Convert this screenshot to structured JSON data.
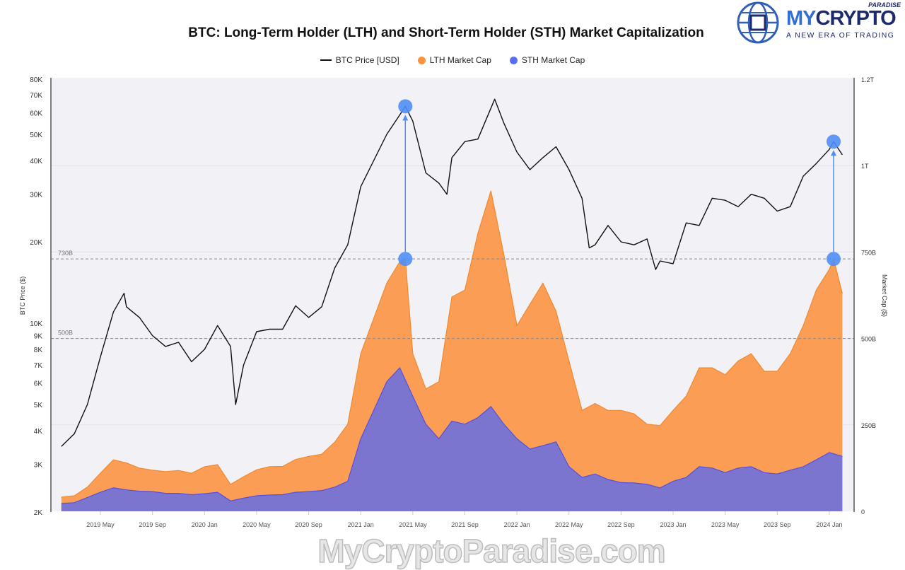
{
  "logo": {
    "brand_a": "MY",
    "brand_b": "CRYPTO",
    "sub": "PARADISE",
    "tagline": "A NEW ERA OF TRADING"
  },
  "watermark": "MyCryptoParadise.com",
  "colors": {
    "price": "#111111",
    "lth": "#fb9d55",
    "sth": "#7b75cf",
    "sth_line": "#5550e0",
    "marker": "#4f8ef7",
    "plot_bg": "#f1f1f6"
  },
  "chart_data": {
    "type": "area",
    "title": "BTC: Long-Term Holder (LTH) and Short-Term Holder (STH) Market Capitalization",
    "legend": [
      "BTC Price [USD]",
      "LTH Market Cap",
      "STH Market Cap"
    ],
    "legend_position": "top-center",
    "ylabel_left": "BTC Price ($)",
    "ylabel_right": "Market Cap ($)",
    "left_axis": {
      "scale": "log",
      "range": [
        2000,
        80000
      ],
      "ticks": [
        "2K",
        "3K",
        "4K",
        "5K",
        "6K",
        "7K",
        "8K",
        "9K",
        "10K",
        "20K",
        "30K",
        "40K",
        "50K",
        "60K",
        "70K",
        "80K"
      ],
      "tick_values": [
        2000,
        3000,
        4000,
        5000,
        6000,
        7000,
        8000,
        9000,
        10000,
        20000,
        30000,
        40000,
        50000,
        60000,
        70000,
        80000
      ]
    },
    "right_axis": {
      "scale": "linear",
      "range_billions": [
        0,
        1250
      ],
      "ticks": [
        "0",
        "250B",
        "500B",
        "750B",
        "1T",
        "1.2T"
      ],
      "tick_values": [
        0,
        250,
        500,
        750,
        1000,
        1250
      ]
    },
    "x_ticks": [
      "2019 May",
      "2019 Sep",
      "2020 Jan",
      "2020 May",
      "2020 Sep",
      "2021 Jan",
      "2021 May",
      "2021 Sep",
      "2022 Jan",
      "2022 May",
      "2022 Sep",
      "2023 Jan",
      "2023 May",
      "2023 Sep",
      "2024 Jan"
    ],
    "x_tick_dates": [
      "2019-05-01",
      "2019-09-01",
      "2020-01-01",
      "2020-05-01",
      "2020-09-01",
      "2021-01-01",
      "2021-05-01",
      "2021-09-01",
      "2022-01-01",
      "2022-05-01",
      "2022-09-01",
      "2023-01-01",
      "2023-05-01",
      "2023-09-01",
      "2024-01-01"
    ],
    "reference_lines": [
      {
        "label": "730B",
        "value": 730
      },
      {
        "label": "500B",
        "value": 500
      }
    ],
    "annotations": [
      {
        "date": "2021-04-14",
        "price": 63500,
        "cap": 730
      },
      {
        "date": "2024-01-11",
        "price": 47000,
        "cap": 730
      }
    ],
    "series": [
      {
        "name": "BTC Price [USD]",
        "unit": "USD",
        "points": [
          [
            "2019-02-01",
            3500
          ],
          [
            "2019-03-01",
            3900
          ],
          [
            "2019-04-01",
            5000
          ],
          [
            "2019-05-01",
            7500
          ],
          [
            "2019-06-01",
            11000
          ],
          [
            "2019-06-26",
            12900
          ],
          [
            "2019-07-01",
            11500
          ],
          [
            "2019-08-01",
            10500
          ],
          [
            "2019-09-01",
            9000
          ],
          [
            "2019-10-01",
            8200
          ],
          [
            "2019-11-01",
            8500
          ],
          [
            "2019-12-01",
            7200
          ],
          [
            "2020-01-01",
            8000
          ],
          [
            "2020-02-01",
            9800
          ],
          [
            "2020-03-01",
            8200
          ],
          [
            "2020-03-13",
            5000
          ],
          [
            "2020-04-01",
            7000
          ],
          [
            "2020-05-01",
            9300
          ],
          [
            "2020-06-01",
            9500
          ],
          [
            "2020-07-01",
            9500
          ],
          [
            "2020-08-01",
            11600
          ],
          [
            "2020-09-01",
            10500
          ],
          [
            "2020-10-01",
            11500
          ],
          [
            "2020-11-01",
            16000
          ],
          [
            "2020-12-01",
            19500
          ],
          [
            "2021-01-01",
            32000
          ],
          [
            "2021-02-01",
            40000
          ],
          [
            "2021-03-01",
            50000
          ],
          [
            "2021-04-01",
            59000
          ],
          [
            "2021-04-14",
            63500
          ],
          [
            "2021-05-01",
            56000
          ],
          [
            "2021-06-01",
            36000
          ],
          [
            "2021-07-01",
            33000
          ],
          [
            "2021-07-20",
            30000
          ],
          [
            "2021-08-01",
            41000
          ],
          [
            "2021-09-01",
            47000
          ],
          [
            "2021-10-01",
            48000
          ],
          [
            "2021-11-10",
            67500
          ],
          [
            "2021-12-01",
            55000
          ],
          [
            "2022-01-01",
            43000
          ],
          [
            "2022-02-01",
            37000
          ],
          [
            "2022-03-01",
            41000
          ],
          [
            "2022-04-01",
            45000
          ],
          [
            "2022-05-01",
            37000
          ],
          [
            "2022-06-01",
            29000
          ],
          [
            "2022-06-18",
            19000
          ],
          [
            "2022-07-01",
            19500
          ],
          [
            "2022-08-01",
            23000
          ],
          [
            "2022-09-01",
            20000
          ],
          [
            "2022-10-01",
            19500
          ],
          [
            "2022-11-01",
            20500
          ],
          [
            "2022-11-21",
            15800
          ],
          [
            "2022-12-01",
            17000
          ],
          [
            "2023-01-01",
            16600
          ],
          [
            "2023-02-01",
            23500
          ],
          [
            "2023-03-01",
            23000
          ],
          [
            "2023-04-01",
            29000
          ],
          [
            "2023-05-01",
            28500
          ],
          [
            "2023-06-01",
            27000
          ],
          [
            "2023-07-01",
            30000
          ],
          [
            "2023-08-01",
            29000
          ],
          [
            "2023-09-01",
            26000
          ],
          [
            "2023-10-01",
            27000
          ],
          [
            "2023-11-01",
            35000
          ],
          [
            "2023-12-01",
            39000
          ],
          [
            "2024-01-01",
            44000
          ],
          [
            "2024-01-11",
            47000
          ],
          [
            "2024-02-01",
            42000
          ]
        ]
      },
      {
        "name": "LTH Market Cap",
        "unit": "billion USD",
        "points": [
          [
            "2019-02-01",
            41
          ],
          [
            "2019-03-01",
            45
          ],
          [
            "2019-04-01",
            70
          ],
          [
            "2019-05-01",
            110
          ],
          [
            "2019-06-01",
            149
          ],
          [
            "2019-07-01",
            140
          ],
          [
            "2019-08-01",
            125
          ],
          [
            "2019-09-01",
            119
          ],
          [
            "2019-10-01",
            115
          ],
          [
            "2019-11-01",
            118
          ],
          [
            "2019-12-01",
            110
          ],
          [
            "2020-01-01",
            129
          ],
          [
            "2020-02-01",
            135
          ],
          [
            "2020-03-01",
            78
          ],
          [
            "2020-04-01",
            100
          ],
          [
            "2020-05-01",
            120
          ],
          [
            "2020-06-01",
            129
          ],
          [
            "2020-07-01",
            130
          ],
          [
            "2020-08-01",
            150
          ],
          [
            "2020-09-01",
            159
          ],
          [
            "2020-10-01",
            165
          ],
          [
            "2020-11-01",
            200
          ],
          [
            "2020-12-01",
            252
          ],
          [
            "2021-01-01",
            456
          ],
          [
            "2021-02-01",
            558
          ],
          [
            "2021-03-01",
            660
          ],
          [
            "2021-04-01",
            722
          ],
          [
            "2021-04-14",
            730
          ],
          [
            "2021-05-01",
            456
          ],
          [
            "2021-06-01",
            354
          ],
          [
            "2021-07-01",
            375
          ],
          [
            "2021-08-01",
            620
          ],
          [
            "2021-09-01",
            640
          ],
          [
            "2021-10-01",
            804
          ],
          [
            "2021-11-01",
            927
          ],
          [
            "2021-12-01",
            742
          ],
          [
            "2022-01-01",
            537
          ],
          [
            "2022-02-01",
            599
          ],
          [
            "2022-03-01",
            660
          ],
          [
            "2022-04-01",
            579
          ],
          [
            "2022-05-01",
            435
          ],
          [
            "2022-06-01",
            292
          ],
          [
            "2022-07-01",
            312
          ],
          [
            "2022-08-01",
            292
          ],
          [
            "2022-09-01",
            292
          ],
          [
            "2022-10-01",
            282
          ],
          [
            "2022-11-01",
            252
          ],
          [
            "2022-12-01",
            248
          ],
          [
            "2023-01-01",
            292
          ],
          [
            "2023-02-01",
            333
          ],
          [
            "2023-03-01",
            415
          ],
          [
            "2023-04-01",
            415
          ],
          [
            "2023-05-01",
            395
          ],
          [
            "2023-06-01",
            435
          ],
          [
            "2023-07-01",
            456
          ],
          [
            "2023-08-01",
            405
          ],
          [
            "2023-09-01",
            405
          ],
          [
            "2023-10-01",
            456
          ],
          [
            "2023-11-01",
            537
          ],
          [
            "2023-12-01",
            640
          ],
          [
            "2024-01-01",
            700
          ],
          [
            "2024-01-11",
            730
          ],
          [
            "2024-02-01",
            630
          ]
        ]
      },
      {
        "name": "STH Market Cap",
        "unit": "billion USD",
        "points": [
          [
            "2019-02-01",
            23
          ],
          [
            "2019-03-01",
            25
          ],
          [
            "2019-04-01",
            40
          ],
          [
            "2019-05-01",
            55
          ],
          [
            "2019-06-01",
            68
          ],
          [
            "2019-07-01",
            62
          ],
          [
            "2019-08-01",
            58
          ],
          [
            "2019-09-01",
            57
          ],
          [
            "2019-10-01",
            52
          ],
          [
            "2019-11-01",
            52
          ],
          [
            "2019-12-01",
            48
          ],
          [
            "2020-01-01",
            51
          ],
          [
            "2020-02-01",
            55
          ],
          [
            "2020-03-01",
            30
          ],
          [
            "2020-04-01",
            38
          ],
          [
            "2020-05-01",
            45
          ],
          [
            "2020-06-01",
            47
          ],
          [
            "2020-07-01",
            48
          ],
          [
            "2020-08-01",
            55
          ],
          [
            "2020-09-01",
            57
          ],
          [
            "2020-10-01",
            60
          ],
          [
            "2020-11-01",
            70
          ],
          [
            "2020-12-01",
            87
          ],
          [
            "2021-01-01",
            210
          ],
          [
            "2021-02-01",
            292
          ],
          [
            "2021-03-01",
            375
          ],
          [
            "2021-04-01",
            415
          ],
          [
            "2021-05-01",
            333
          ],
          [
            "2021-06-01",
            252
          ],
          [
            "2021-07-01",
            210
          ],
          [
            "2021-08-01",
            261
          ],
          [
            "2021-09-01",
            252
          ],
          [
            "2021-10-01",
            271
          ],
          [
            "2021-11-01",
            303
          ],
          [
            "2021-12-01",
            252
          ],
          [
            "2022-01-01",
            210
          ],
          [
            "2022-02-01",
            180
          ],
          [
            "2022-03-01",
            190
          ],
          [
            "2022-04-01",
            201
          ],
          [
            "2022-05-01",
            129
          ],
          [
            "2022-06-01",
            98
          ],
          [
            "2022-07-01",
            108
          ],
          [
            "2022-08-01",
            92
          ],
          [
            "2022-09-01",
            83
          ],
          [
            "2022-10-01",
            82
          ],
          [
            "2022-11-01",
            78
          ],
          [
            "2022-12-01",
            68
          ],
          [
            "2023-01-01",
            87
          ],
          [
            "2023-02-01",
            98
          ],
          [
            "2023-03-01",
            129
          ],
          [
            "2023-04-01",
            125
          ],
          [
            "2023-05-01",
            112
          ],
          [
            "2023-06-01",
            125
          ],
          [
            "2023-07-01",
            129
          ],
          [
            "2023-08-01",
            112
          ],
          [
            "2023-09-01",
            108
          ],
          [
            "2023-10-01",
            119
          ],
          [
            "2023-11-01",
            129
          ],
          [
            "2023-12-01",
            149
          ],
          [
            "2024-01-01",
            170
          ],
          [
            "2024-02-01",
            159
          ]
        ]
      }
    ]
  }
}
